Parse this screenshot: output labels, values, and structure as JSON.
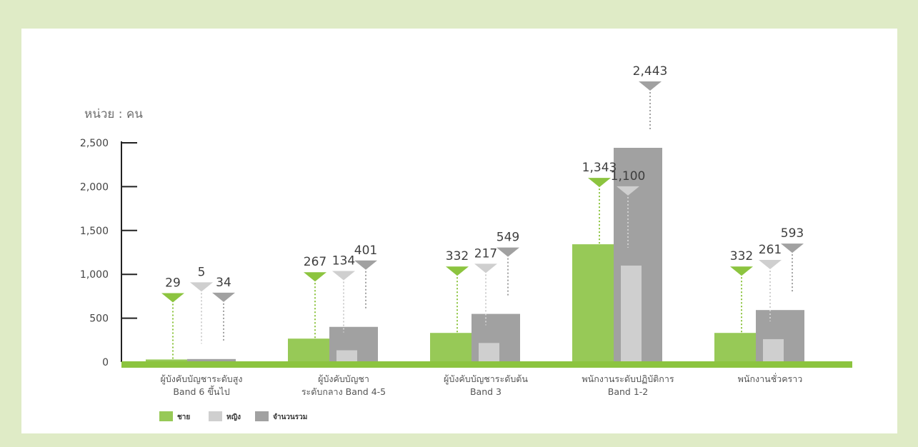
{
  "chart_data": {
    "type": "bar",
    "unit_label": "หน่วย : คน",
    "categories": [
      [
        "ผู้บังคับบัญชาระดับสูง",
        "Band 6 ขึ้นไป"
      ],
      [
        "ผู้บังคับบัญชา",
        "ระดับกลาง Band 4-5"
      ],
      [
        "ผู้บังคับบัญชาระดับต้น",
        "Band 3"
      ],
      [
        "พนักงานระดับปฏิบัติการ",
        "Band 1-2"
      ],
      [
        "พนักงานชั่วคราว"
      ]
    ],
    "series": [
      {
        "name": "ชาย",
        "color": "#97c957",
        "values": [
          29,
          267,
          332,
          1343,
          332
        ],
        "labels": [
          "29",
          "267",
          "332",
          "1,343",
          "332"
        ]
      },
      {
        "name": "หญิง",
        "color": "#cfcfcf",
        "values": [
          5,
          134,
          217,
          1100,
          261
        ],
        "labels": [
          "5",
          "134",
          "217",
          "1,100",
          "261"
        ]
      },
      {
        "name": "จำนวนรวม",
        "color": "#a1a1a1",
        "values": [
          34,
          401,
          549,
          2443,
          593
        ],
        "labels": [
          "34",
          "401",
          "549",
          "2,443",
          "593"
        ]
      }
    ],
    "y_ticks": [
      "0",
      "500",
      "1,000",
      "1,500",
      "2,000",
      "2,500"
    ],
    "ylim": [
      0,
      2500
    ],
    "baseline_color": "#8cc43f",
    "legend_position": "bottom-left"
  }
}
